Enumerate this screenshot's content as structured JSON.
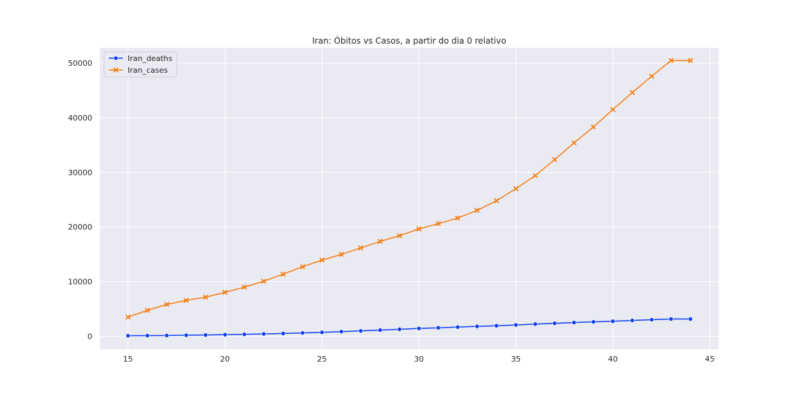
{
  "chart_data": {
    "type": "line",
    "title": "Iran: Óbitos vs Casos, a partir do dia 0 relativo",
    "xlabel": "",
    "ylabel": "",
    "xlim": [
      13.55,
      45.45
    ],
    "ylim": [
      -2350,
      52800
    ],
    "xticks": [
      15,
      20,
      25,
      30,
      35,
      40,
      45
    ],
    "yticks": [
      0,
      10000,
      20000,
      30000,
      40000,
      50000
    ],
    "grid": true,
    "legend": "top-left",
    "x": [
      15,
      16,
      17,
      18,
      19,
      20,
      21,
      22,
      23,
      24,
      25,
      26,
      27,
      28,
      29,
      30,
      31,
      32,
      33,
      34,
      35,
      36,
      37,
      38,
      39,
      40,
      41,
      42,
      43,
      44
    ],
    "series": [
      {
        "name": "Iran_deaths",
        "color": "#0d3bf0",
        "marker": "circle",
        "values": [
          107,
          124,
          145,
          194,
          237,
          291,
          354,
          429,
          514,
          611,
          724,
          853,
          988,
          1135,
          1284,
          1433,
          1556,
          1685,
          1812,
          1934,
          2077,
          2234,
          2378,
          2517,
          2640,
          2757,
          2898,
          3036,
          3160,
          3160
        ]
      },
      {
        "name": "Iran_cases",
        "color": "#f57c0f",
        "marker": "x",
        "values": [
          3513,
          4747,
          5823,
          6566,
          7161,
          8042,
          9000,
          10075,
          11364,
          12729,
          13938,
          14991,
          16169,
          17361,
          18407,
          19644,
          20610,
          21638,
          23049,
          24811,
          27017,
          29406,
          32332,
          35408,
          38309,
          41495,
          44605,
          47593,
          50468,
          50468
        ]
      }
    ]
  }
}
